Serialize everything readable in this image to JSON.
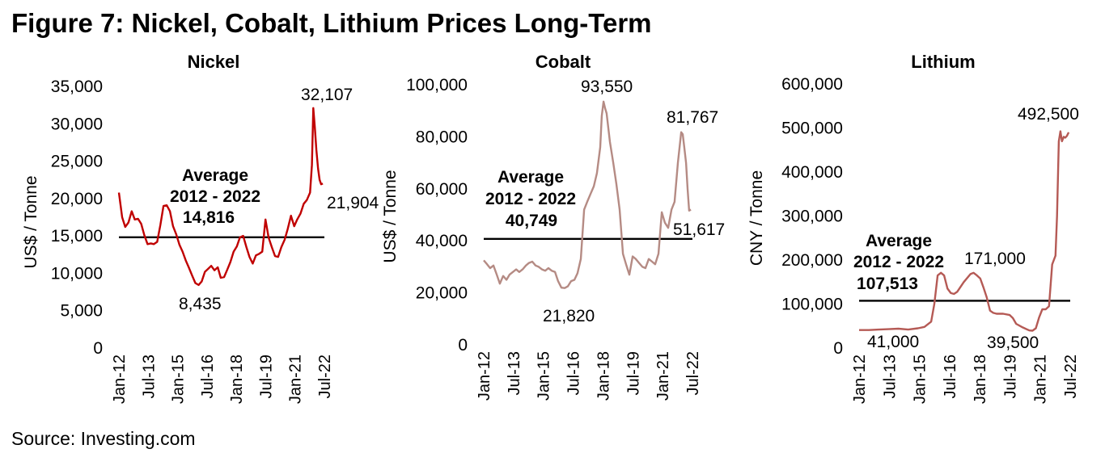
{
  "figure_title": "Figure 7: Nickel, Cobalt, Lithium Prices Long-Term",
  "source": "Source: Investing.com",
  "colors": {
    "nickel": "#c00000",
    "cobalt": "#b58b84",
    "lithium": "#b55a55",
    "average_line": "#000000"
  },
  "chart_data": [
    {
      "type": "line",
      "title": "Nickel",
      "xlabel": "",
      "ylabel": "US$ / Tonne",
      "ylim": [
        0,
        35000
      ],
      "yticks": [
        0,
        5000,
        10000,
        15000,
        20000,
        25000,
        30000,
        35000
      ],
      "ytick_labels": [
        "0",
        "5,000",
        "10,000",
        "15,000",
        "20,000",
        "25,000",
        "30,000",
        "35,000"
      ],
      "xtick_labels": [
        "Jan-12",
        "Jul-13",
        "Jan-15",
        "Jul-16",
        "Jan-18",
        "Jul-19",
        "Jan-21",
        "Jul-22"
      ],
      "xlim": [
        2012.0,
        2022.75
      ],
      "average": {
        "value": 14816,
        "label_lines": [
          "Average",
          "2012 - 2022",
          "14,816"
        ]
      },
      "data_labels": [
        "32,107",
        "21,904",
        "8,435"
      ],
      "series": [
        {
          "name": "Nickel",
          "x": [
            2012.0,
            2012.17,
            2012.33,
            2012.5,
            2012.67,
            2012.83,
            2013.0,
            2013.17,
            2013.33,
            2013.5,
            2013.67,
            2013.83,
            2014.0,
            2014.17,
            2014.33,
            2014.5,
            2014.67,
            2014.83,
            2015.0,
            2015.17,
            2015.33,
            2015.5,
            2015.67,
            2015.83,
            2016.0,
            2016.17,
            2016.33,
            2016.5,
            2016.67,
            2016.83,
            2017.0,
            2017.17,
            2017.33,
            2017.5,
            2017.67,
            2017.83,
            2018.0,
            2018.17,
            2018.33,
            2018.5,
            2018.67,
            2018.83,
            2019.0,
            2019.17,
            2019.33,
            2019.5,
            2019.67,
            2019.83,
            2020.0,
            2020.17,
            2020.33,
            2020.5,
            2020.67,
            2020.83,
            2021.0,
            2021.17,
            2021.33,
            2021.5,
            2021.67,
            2021.83,
            2022.0,
            2022.1,
            2022.17,
            2022.25,
            2022.33,
            2022.42,
            2022.5,
            2022.58,
            2022.67
          ],
          "y": [
            20800,
            17500,
            16200,
            16800,
            18300,
            17200,
            17300,
            16600,
            15100,
            13900,
            14000,
            13900,
            14200,
            16500,
            19000,
            19100,
            18300,
            16300,
            15200,
            13800,
            12900,
            11700,
            10700,
            9700,
            8700,
            8435,
            8900,
            10200,
            10600,
            11000,
            10400,
            10800,
            9400,
            9500,
            10500,
            11500,
            12900,
            13600,
            14800,
            15000,
            13500,
            12200,
            11300,
            12400,
            12600,
            12900,
            17200,
            14800,
            13500,
            12300,
            12200,
            13500,
            14500,
            15900,
            17700,
            16300,
            17200,
            18000,
            19300,
            19800,
            20800,
            24500,
            32107,
            29500,
            26500,
            24000,
            22500,
            21904,
            22000
          ]
        }
      ]
    },
    {
      "type": "line",
      "title": "Cobalt",
      "xlabel": "",
      "ylabel": "US$ / Tonne",
      "ylim": [
        0,
        100000
      ],
      "yticks": [
        0,
        20000,
        40000,
        60000,
        80000,
        100000
      ],
      "ytick_labels": [
        "0",
        "20,000",
        "40,000",
        "60,000",
        "80,000",
        "100,000"
      ],
      "xtick_labels": [
        "Jan-12",
        "Jul-13",
        "Jan-15",
        "Jul-16",
        "Jan-18",
        "Jul-19",
        "Jan-21",
        "Jul-22"
      ],
      "xlim": [
        2012.0,
        2022.75
      ],
      "average": {
        "value": 40749,
        "label_lines": [
          "Average",
          "2012 - 2022",
          "40,749"
        ]
      },
      "data_labels": [
        "93,550",
        "81,767",
        "51,617",
        "21,820"
      ],
      "series": [
        {
          "name": "Cobalt",
          "x": [
            2012.0,
            2012.17,
            2012.33,
            2012.5,
            2012.67,
            2012.83,
            2013.0,
            2013.17,
            2013.33,
            2013.5,
            2013.67,
            2013.83,
            2014.0,
            2014.17,
            2014.33,
            2014.5,
            2014.67,
            2014.83,
            2015.0,
            2015.17,
            2015.33,
            2015.5,
            2015.67,
            2015.83,
            2016.0,
            2016.17,
            2016.33,
            2016.5,
            2016.67,
            2016.83,
            2017.0,
            2017.17,
            2017.33,
            2017.5,
            2017.67,
            2017.83,
            2018.0,
            2018.08,
            2018.17,
            2018.25,
            2018.33,
            2018.5,
            2018.67,
            2018.83,
            2019.0,
            2019.17,
            2019.33,
            2019.5,
            2019.67,
            2019.83,
            2020.0,
            2020.17,
            2020.33,
            2020.5,
            2020.67,
            2020.83,
            2021.0,
            2021.17,
            2021.33,
            2021.5,
            2021.67,
            2021.83,
            2022.0,
            2022.17,
            2022.25,
            2022.33,
            2022.42,
            2022.5,
            2022.58,
            2022.67
          ],
          "y": [
            32500,
            31000,
            29500,
            30500,
            27000,
            23500,
            26500,
            25000,
            27000,
            28000,
            29000,
            28000,
            29000,
            30500,
            31500,
            32000,
            30500,
            30000,
            29000,
            28500,
            29500,
            28500,
            28000,
            24500,
            22000,
            21820,
            22500,
            24500,
            25000,
            27500,
            33000,
            52000,
            55000,
            58000,
            61000,
            66000,
            76000,
            88000,
            93550,
            91000,
            89000,
            78000,
            70000,
            62000,
            52000,
            35000,
            31000,
            27000,
            34000,
            33000,
            31500,
            30000,
            29500,
            33000,
            32000,
            31000,
            35000,
            51000,
            47000,
            45000,
            52000,
            55000,
            70000,
            81767,
            81000,
            76000,
            70000,
            60000,
            51617,
            52000
          ]
        }
      ]
    },
    {
      "type": "line",
      "title": "Lithium",
      "xlabel": "",
      "ylabel": "CNY / Tonne",
      "ylim": [
        0,
        600000
      ],
      "yticks": [
        0,
        100000,
        200000,
        300000,
        400000,
        500000,
        600000
      ],
      "ytick_labels": [
        "0",
        "100,000",
        "200,000",
        "300,000",
        "400,000",
        "500,000",
        "600,000"
      ],
      "xtick_labels": [
        "Jan-12",
        "Jul-13",
        "Jan-15",
        "Jul-16",
        "Jan-18",
        "Jul-19",
        "Jan-21",
        "Jul-22"
      ],
      "xlim": [
        2012.0,
        2022.75
      ],
      "average": {
        "value": 107513,
        "label_lines": [
          "Average",
          "2012 - 2022",
          "107,513"
        ]
      },
      "data_labels": [
        "492,500",
        "171,000",
        "41,000",
        "39,500"
      ],
      "series": [
        {
          "name": "Lithium",
          "x": [
            2012.0,
            2012.5,
            2013.0,
            2013.5,
            2014.0,
            2014.5,
            2015.0,
            2015.33,
            2015.67,
            2015.83,
            2016.0,
            2016.17,
            2016.33,
            2016.5,
            2016.67,
            2016.83,
            2017.0,
            2017.33,
            2017.67,
            2017.83,
            2018.0,
            2018.17,
            2018.33,
            2018.5,
            2018.67,
            2018.83,
            2019.0,
            2019.33,
            2019.67,
            2019.83,
            2020.0,
            2020.33,
            2020.67,
            2020.83,
            2021.0,
            2021.17,
            2021.33,
            2021.5,
            2021.67,
            2021.83,
            2022.0,
            2022.08,
            2022.17,
            2022.25,
            2022.33,
            2022.42,
            2022.5,
            2022.58,
            2022.67
          ],
          "y": [
            41000,
            41000,
            42000,
            43000,
            44000,
            42000,
            45000,
            48000,
            60000,
            100000,
            165000,
            171000,
            165000,
            135000,
            125000,
            123000,
            128000,
            150000,
            168000,
            171000,
            165000,
            158000,
            138000,
            115000,
            85000,
            80000,
            78000,
            78000,
            75000,
            68000,
            55000,
            47000,
            40000,
            39500,
            45000,
            70000,
            88000,
            88000,
            95000,
            190000,
            210000,
            300000,
            470000,
            492500,
            470000,
            480000,
            478000,
            482000,
            490000
          ]
        }
      ]
    }
  ]
}
